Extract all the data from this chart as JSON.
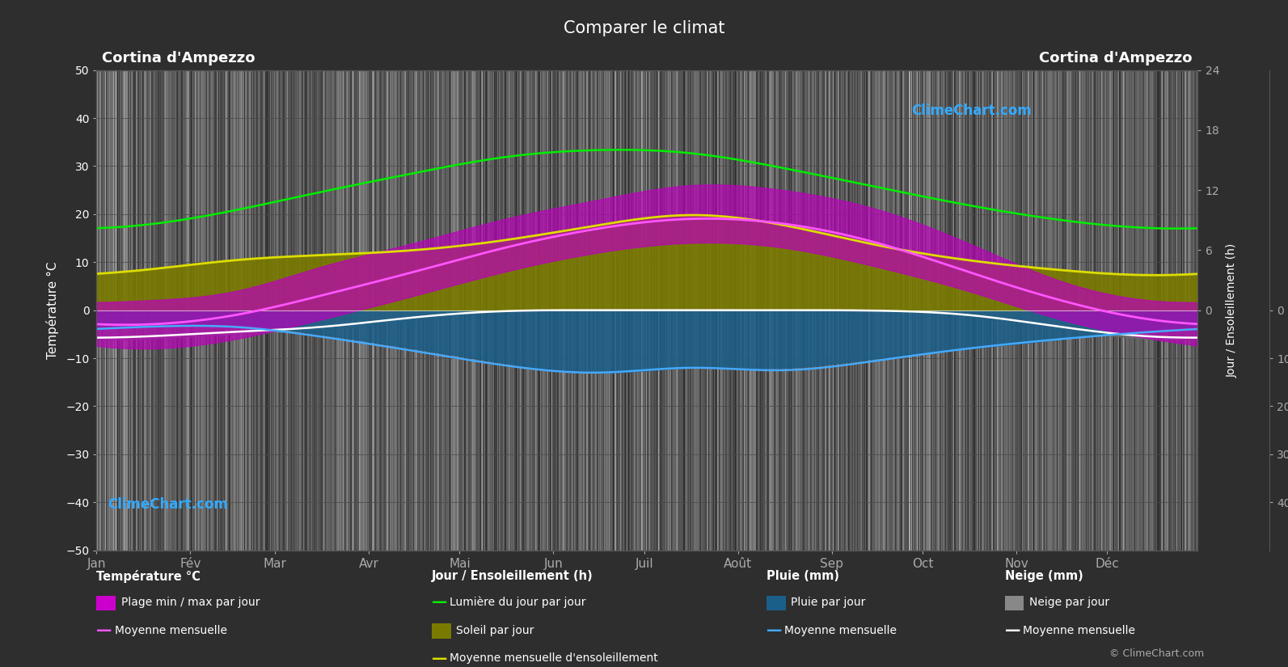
{
  "title": "Comparer le climat",
  "location": "Cortina d'Ampezzo",
  "months": [
    "Jan",
    "Fév",
    "Mar",
    "Avr",
    "Mai",
    "Jun",
    "Juil",
    "Août",
    "Sep",
    "Oct",
    "Nov",
    "Déc"
  ],
  "month_centers_doy": [
    15,
    46,
    74,
    105,
    135,
    166,
    196,
    227,
    258,
    288,
    319,
    349
  ],
  "month_starts_doy": [
    0,
    31,
    59,
    90,
    120,
    151,
    181,
    212,
    243,
    273,
    304,
    334
  ],
  "days_in_year": 365,
  "temp_ylim": [
    -50,
    50
  ],
  "sun_scale": 2.083,
  "precip_scale": 1.0,
  "background_color": "#2e2e2e",
  "plot_bg_color": "#2e2e2e",
  "temp_min_monthly": [
    -8,
    -6,
    -2,
    3,
    8,
    12,
    14,
    13,
    9,
    4,
    -2,
    -6
  ],
  "temp_max_monthly": [
    2,
    4,
    9,
    14,
    19,
    23,
    26,
    25,
    21,
    14,
    6,
    2
  ],
  "temp_mean_monthly": [
    -3,
    -1,
    3,
    8,
    13,
    17,
    19,
    18,
    14,
    8,
    2,
    -2
  ],
  "daylight_hours_monthly": [
    8.5,
    10.0,
    11.8,
    13.7,
    15.3,
    16.0,
    15.7,
    14.2,
    12.3,
    10.5,
    9.0,
    8.2
  ],
  "sunshine_hours_monthly": [
    4.0,
    5.0,
    5.5,
    6.0,
    7.0,
    8.5,
    9.5,
    8.5,
    6.5,
    5.0,
    4.0,
    3.5
  ],
  "rain_mm_daily_monthly": [
    3,
    3,
    5,
    8,
    11,
    13,
    12,
    12,
    10,
    8,
    6,
    4
  ],
  "rain_mean_monthly": [
    3.5,
    3.5,
    5.5,
    8.5,
    11.5,
    13.0,
    12.0,
    12.5,
    10.5,
    8.0,
    6.0,
    4.5
  ],
  "snow_mm_daily_monthly": [
    6,
    5,
    4,
    2,
    0,
    0,
    0,
    0,
    0,
    1,
    4,
    6
  ],
  "snow_mean_monthly": [
    5.5,
    4.5,
    3.5,
    1.5,
    0.2,
    0,
    0,
    0,
    0.1,
    1.0,
    3.5,
    5.5
  ],
  "colors": {
    "temp_range_fill": "#cc00cc",
    "sunshine_fill": "#7a7a00",
    "rain_fill": "#1a5f8a",
    "snow_fill": "#707070",
    "daylight_line": "#00dd00",
    "sunshine_mean_line": "#cccc00",
    "temp_mean_line": "#ff55ff",
    "snow_mean_line": "#ffffff",
    "rain_mean_line": "#44aaff",
    "text_color": "#ffffff",
    "grid_color": "#4a4a4a"
  }
}
